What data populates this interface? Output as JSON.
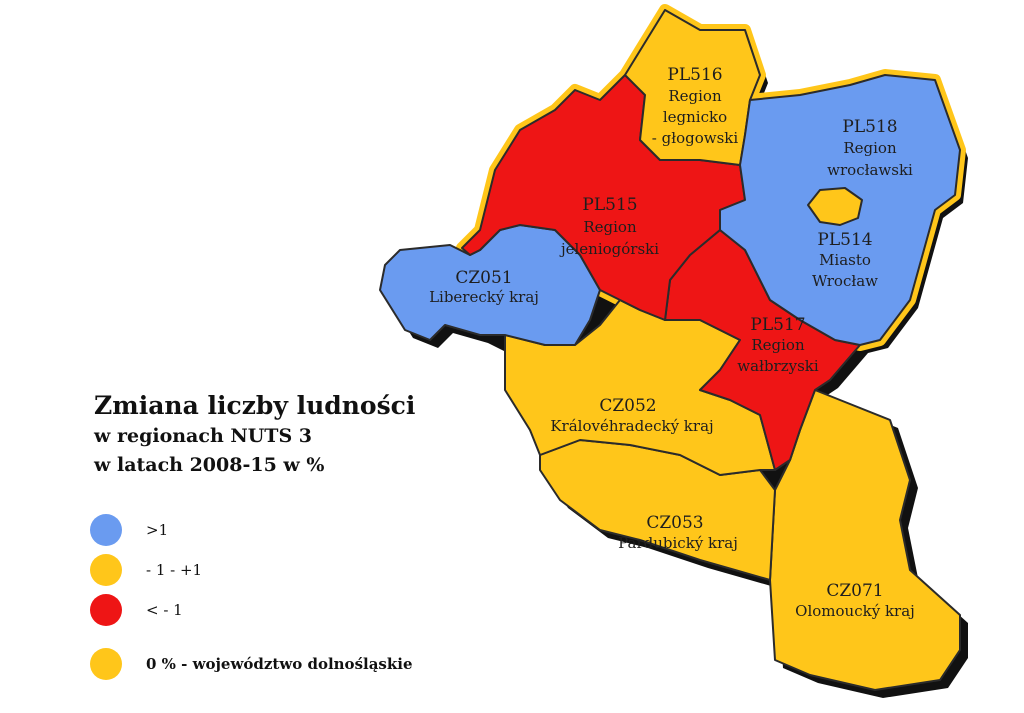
{
  "colors": {
    "high": "#6a9bf0",
    "mid": "#ffc61a",
    "low": "#ee1515",
    "border": "#2b2b2b",
    "shadow": "#111111"
  },
  "legend": {
    "title_line1": "Zmiana liczby ludności",
    "title_line2": "w regionach NUTS 3",
    "title_line3": "w latach 2008-15 w %",
    "items": [
      {
        "label": ">1",
        "color": "#6a9bf0"
      },
      {
        "label": "- 1 - +1",
        "color": "#ffc61a"
      },
      {
        "label": "< - 1",
        "color": "#ee1515"
      },
      {
        "label": "0 % - województwo dolnośląskie",
        "color": "#ffc61a"
      }
    ]
  },
  "regions": {
    "pl516": {
      "code": "PL516",
      "name1": "Region",
      "name2": "legnicko",
      "name3": "- głogowski"
    },
    "pl518": {
      "code": "PL518",
      "name1": "Region",
      "name2": "wrocławski"
    },
    "pl514": {
      "code": "PL514",
      "name1": "Miasto",
      "name2": "Wrocław"
    },
    "pl515": {
      "code": "PL515",
      "name1": "Region",
      "name2": "jeleniogórski"
    },
    "pl517": {
      "code": "PL517",
      "name1": "Region",
      "name2": "wałbrzyski"
    },
    "cz051": {
      "code": "CZ051",
      "name1": "Liberecký kraj"
    },
    "cz052": {
      "code": "CZ052",
      "name1": "Královéhradecký kraj"
    },
    "cz053": {
      "code": "CZ053",
      "name1": "Pardubický kraj"
    },
    "cz071": {
      "code": "CZ071",
      "name1": "Olomoucký kraj"
    }
  }
}
